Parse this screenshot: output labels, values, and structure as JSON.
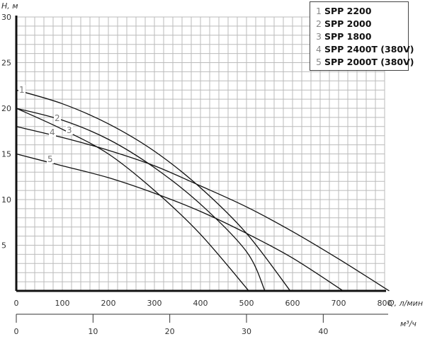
{
  "chart_data": {
    "type": "line",
    "title": "",
    "xlabel": "Q, л/мин",
    "ylabel": "H, м",
    "secondary_xlabel": "м³/ч",
    "xlim": [
      0,
      800
    ],
    "ylim": [
      0,
      30
    ],
    "grid": true,
    "legend_position": "top-right",
    "x_ticks": [
      "0",
      "100",
      "200",
      "300",
      "400",
      "500",
      "600",
      "700",
      "800"
    ],
    "y_ticks": [
      "5",
      "10",
      "15",
      "20",
      "25",
      "30"
    ],
    "secondary_x_ticks": [
      "0",
      "10",
      "20",
      "30",
      "40"
    ],
    "series": [
      {
        "id": "1",
        "name": "SPP 2200",
        "points": [
          [
            0,
            22
          ],
          [
            100,
            20.5
          ],
          [
            200,
            18.3
          ],
          [
            300,
            15.3
          ],
          [
            400,
            11.3
          ],
          [
            500,
            6.3
          ],
          [
            595,
            0
          ]
        ]
      },
      {
        "id": "2",
        "name": "SPP 2000",
        "points": [
          [
            0,
            20
          ],
          [
            100,
            18.7
          ],
          [
            200,
            16.6
          ],
          [
            300,
            13.5
          ],
          [
            400,
            9.5
          ],
          [
            500,
            4.3
          ],
          [
            540,
            0
          ]
        ]
      },
      {
        "id": "3",
        "name": "SPP 1800",
        "points": [
          [
            0,
            20
          ],
          [
            100,
            17.7
          ],
          [
            200,
            15
          ],
          [
            300,
            11
          ],
          [
            400,
            6.2
          ],
          [
            505,
            0
          ]
        ]
      },
      {
        "id": "4",
        "name": "SPP 2400T (380V)",
        "points": [
          [
            0,
            18
          ],
          [
            100,
            16.8
          ],
          [
            200,
            15.4
          ],
          [
            300,
            13.7
          ],
          [
            400,
            11.5
          ],
          [
            500,
            9.2
          ],
          [
            600,
            6.5
          ],
          [
            700,
            3.5
          ],
          [
            810,
            0
          ]
        ]
      },
      {
        "id": "5",
        "name": "SPP 2000T (380V)",
        "points": [
          [
            0,
            15
          ],
          [
            100,
            13.7
          ],
          [
            200,
            12.4
          ],
          [
            300,
            10.7
          ],
          [
            400,
            8.7
          ],
          [
            500,
            6.3
          ],
          [
            600,
            3.6
          ],
          [
            710,
            0
          ]
        ]
      }
    ]
  }
}
